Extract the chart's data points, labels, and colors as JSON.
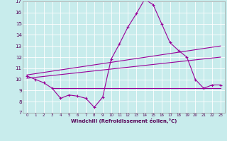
{
  "xlim": [
    -0.5,
    23.5
  ],
  "ylim": [
    7,
    17
  ],
  "yticks": [
    7,
    8,
    9,
    10,
    11,
    12,
    13,
    14,
    15,
    16,
    17
  ],
  "xticks": [
    0,
    1,
    2,
    3,
    4,
    5,
    6,
    7,
    8,
    9,
    10,
    11,
    12,
    13,
    14,
    15,
    16,
    17,
    18,
    19,
    20,
    21,
    22,
    23
  ],
  "xlabel": "Windchill (Refroidissement éolien,°C)",
  "bg_color": "#c8ecec",
  "grid_color": "#aadddd",
  "line_color": "#990099",
  "main_x": [
    0,
    1,
    2,
    3,
    4,
    5,
    6,
    7,
    8,
    9,
    10,
    11,
    12,
    13,
    14,
    15,
    16,
    17,
    18,
    19,
    20,
    21,
    22,
    23
  ],
  "main_y": [
    10.3,
    10.0,
    9.7,
    9.2,
    8.3,
    8.6,
    8.5,
    8.3,
    7.5,
    8.4,
    11.8,
    13.2,
    14.7,
    15.9,
    17.2,
    16.7,
    15.0,
    13.3,
    12.6,
    12.0,
    10.0,
    9.2,
    9.5,
    9.5
  ],
  "line1_x": [
    0,
    23
  ],
  "line1_y": [
    10.4,
    13.0
  ],
  "line2_x": [
    0,
    23
  ],
  "line2_y": [
    10.1,
    12.0
  ],
  "line3_x": [
    3,
    23
  ],
  "line3_y": [
    9.2,
    9.2
  ],
  "figsize": [
    3.2,
    2.0
  ],
  "dpi": 100
}
